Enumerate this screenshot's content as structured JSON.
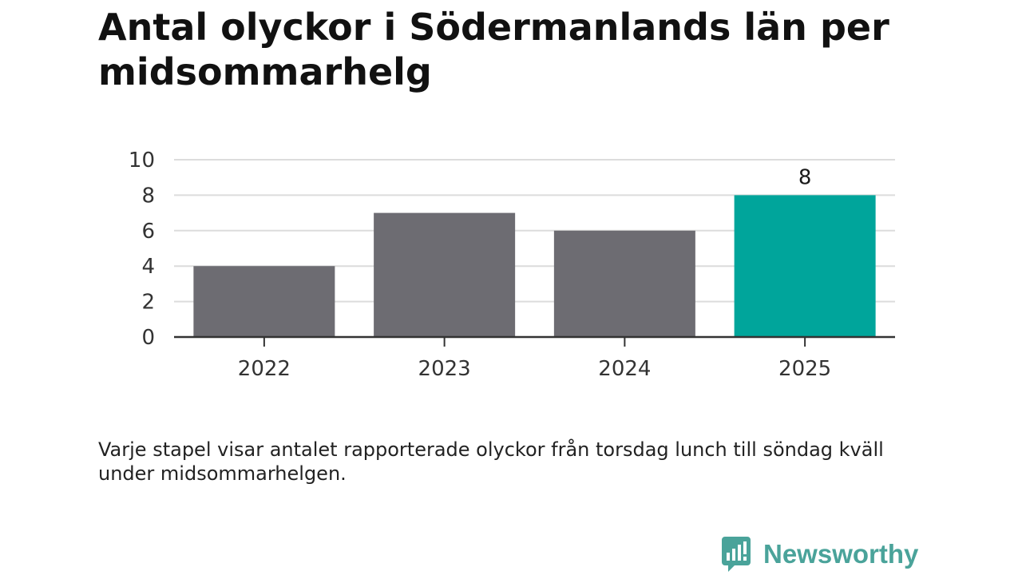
{
  "title": "Antal olyckor i Södermanlands län per midsommarhelg",
  "note": "Varje stapel visar antalet rapporterade olyckor från torsdag lunch till söndag kväll under midsommarhelgen.",
  "brand": {
    "name": "Newsworthy",
    "color": "#4aa39a"
  },
  "colors": {
    "default_bar": "#6d6c72",
    "highlight_bar": "#00a59b",
    "grid": "#dcdcdc",
    "axis": "#333333"
  },
  "chart_data": {
    "type": "bar",
    "categories": [
      "2022",
      "2023",
      "2024",
      "2025"
    ],
    "values": [
      4,
      7,
      6,
      8
    ],
    "highlight_index": 3,
    "data_labels": [
      "",
      "",
      "",
      "8"
    ],
    "ylim": [
      0,
      10
    ],
    "yticks": [
      0,
      2,
      4,
      6,
      8,
      10
    ],
    "grid": true,
    "legend": "none",
    "xlabel": "",
    "ylabel": ""
  }
}
